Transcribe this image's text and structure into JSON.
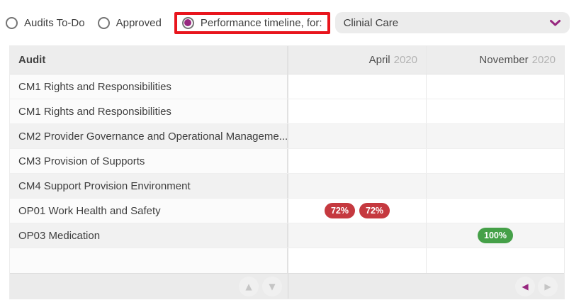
{
  "colors": {
    "accent": "#97277f",
    "highlight": "#e8151d",
    "badge_fail": "#c5393f",
    "badge_pass": "#45a048"
  },
  "controls": {
    "radios": [
      {
        "label": "Audits To-Do",
        "selected": false,
        "highlighted": false
      },
      {
        "label": "Approved",
        "selected": false,
        "highlighted": false
      },
      {
        "label": "Performance timeline, for:",
        "selected": true,
        "highlighted": true
      }
    ],
    "dropdown": {
      "value": "Clinial Care",
      "icon": "chevron-down"
    }
  },
  "table": {
    "header": {
      "audit": "Audit",
      "columns": [
        {
          "month": "April",
          "year": "2020"
        },
        {
          "month": "November",
          "year": "2020"
        }
      ]
    },
    "rows": [
      {
        "audit": "CM1 Rights and Responsibilities",
        "striped": false,
        "cells": [
          [],
          []
        ]
      },
      {
        "audit": "CM1 Rights and Responsibilities",
        "striped": false,
        "cells": [
          [],
          []
        ]
      },
      {
        "audit": "CM2 Provider Governance and Operational Manageme...",
        "striped": true,
        "cells": [
          [],
          []
        ]
      },
      {
        "audit": "CM3 Provision of Supports",
        "striped": false,
        "cells": [
          [],
          []
        ]
      },
      {
        "audit": "CM4 Support Provision Environment",
        "striped": true,
        "cells": [
          [],
          []
        ]
      },
      {
        "audit": "OP01 Work Health and Safety",
        "striped": false,
        "cells": [
          [
            {
              "text": "72%",
              "status": "fail"
            },
            {
              "text": "72%",
              "status": "fail"
            }
          ],
          []
        ]
      },
      {
        "audit": "OP03 Medication",
        "striped": true,
        "cells": [
          [],
          [
            {
              "text": "100%",
              "status": "pass"
            }
          ]
        ]
      },
      {
        "audit": "",
        "striped": false,
        "cells": [
          [],
          []
        ]
      }
    ],
    "pager": {
      "icons": {
        "up": "▲",
        "down": "▼",
        "prev": "◀",
        "next": "▶"
      },
      "up_enabled": false,
      "down_enabled": false,
      "prev_enabled": true,
      "next_enabled": false
    }
  }
}
